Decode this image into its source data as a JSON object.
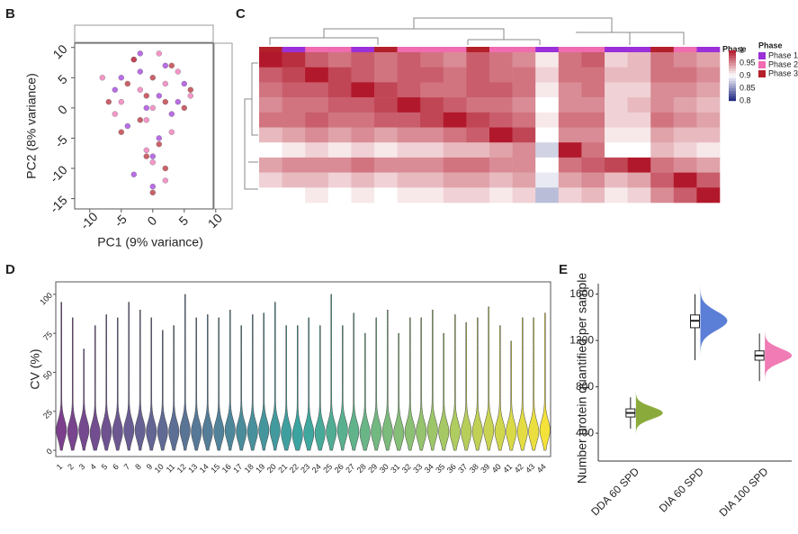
{
  "chart_data": [
    {
      "type": "scatter",
      "panel": "B",
      "x_label": "PC1 (9% variance)",
      "y_label": "PC2 (8% variance)",
      "xlim": [
        -12.4,
        9.6
      ],
      "ylim": [
        -16.7,
        10.7
      ],
      "xticks": [
        -10,
        -5,
        0,
        5,
        10
      ],
      "yticks": [
        -15,
        -10,
        -5,
        0,
        5,
        10
      ],
      "series": [
        {
          "name": "Phase 1",
          "color": "#9b30d9",
          "x": [
            -6,
            -2,
            1,
            3,
            -4,
            0,
            2,
            -1,
            5,
            -3,
            1,
            -2,
            0,
            4,
            -5
          ],
          "y": [
            3,
            6,
            2,
            -1,
            -3,
            -8,
            7,
            0,
            4,
            -11,
            -5,
            9,
            -13,
            1,
            5
          ]
        },
        {
          "name": "Phase 2",
          "color": "#f06bb0",
          "x": [
            -8,
            -3,
            2,
            6,
            -1,
            0,
            -5,
            3,
            1,
            -2,
            4,
            -6,
            2,
            -1,
            0
          ],
          "y": [
            5,
            8,
            4,
            2,
            -2,
            -9,
            1,
            -4,
            9,
            3,
            6,
            -1,
            -12,
            -7,
            0
          ]
        },
        {
          "name": "Phase 3",
          "color": "#b3202a",
          "x": [
            -7,
            -4,
            0,
            3,
            5,
            -2,
            1,
            -1,
            2,
            -3,
            0,
            6,
            -5,
            2,
            -1
          ],
          "y": [
            1,
            4,
            5,
            7,
            0,
            -2,
            -6,
            2,
            -10,
            8,
            -14,
            3,
            -4,
            1,
            -8
          ]
        }
      ]
    },
    {
      "type": "heatmap",
      "panel": "C",
      "annotation_label": "Phase",
      "legend_title": "Phase",
      "legend": [
        "Phase 1",
        "Phase 2",
        "Phase 3"
      ],
      "legend_colors": [
        "#9b30d9",
        "#f06bb0",
        "#b3202a"
      ],
      "column_phase": [
        2,
        0,
        1,
        1,
        0,
        2,
        1,
        1,
        1,
        2,
        1,
        1,
        0,
        1,
        1,
        0,
        0,
        2,
        1,
        0
      ],
      "clim": [
        0.8,
        1
      ],
      "cticks": [
        1,
        0.95,
        0.9,
        0.85,
        0.8
      ],
      "matrix": [
        [
          1,
          0.99,
          0.97,
          0.96,
          0.97,
          0.96,
          0.97,
          0.96,
          0.95,
          0.97,
          0.96,
          0.95,
          0.91,
          0.96,
          0.97,
          0.92,
          0.93,
          0.96,
          0.95,
          0.94
        ],
        [
          0.97,
          0.98,
          1,
          0.98,
          0.97,
          0.96,
          0.97,
          0.97,
          0.96,
          0.97,
          0.96,
          0.96,
          0.92,
          0.96,
          0.96,
          0.93,
          0.93,
          0.96,
          0.96,
          0.95
        ],
        [
          0.96,
          0.97,
          0.97,
          0.98,
          1,
          0.98,
          0.97,
          0.96,
          0.96,
          0.97,
          0.97,
          0.96,
          0.91,
          0.95,
          0.96,
          0.92,
          0.92,
          0.95,
          0.95,
          0.94
        ],
        [
          0.95,
          0.96,
          0.96,
          0.97,
          0.97,
          0.98,
          1,
          0.98,
          0.97,
          0.96,
          0.96,
          0.95,
          0.9,
          0.95,
          0.95,
          0.92,
          0.93,
          0.95,
          0.94,
          0.93
        ],
        [
          0.96,
          0.96,
          0.97,
          0.96,
          0.96,
          0.97,
          0.97,
          0.98,
          1,
          0.98,
          0.97,
          0.96,
          0.91,
          0.96,
          0.96,
          0.92,
          0.92,
          0.96,
          0.95,
          0.94
        ],
        [
          0.93,
          0.94,
          0.95,
          0.94,
          0.95,
          0.94,
          0.95,
          0.95,
          0.96,
          0.97,
          1,
          0.98,
          0.9,
          0.95,
          0.95,
          0.91,
          0.91,
          0.94,
          0.93,
          0.93
        ],
        [
          0.9,
          0.91,
          0.92,
          0.91,
          0.92,
          0.91,
          0.92,
          0.92,
          0.93,
          0.93,
          0.94,
          0.95,
          0.88,
          1,
          0.96,
          0.9,
          0.9,
          0.93,
          0.92,
          0.91
        ],
        [
          0.94,
          0.95,
          0.95,
          0.95,
          0.96,
          0.95,
          0.95,
          0.95,
          0.96,
          0.96,
          0.95,
          0.95,
          0.9,
          0.96,
          0.97,
          0.98,
          1,
          0.96,
          0.95,
          0.94
        ],
        [
          0.92,
          0.93,
          0.93,
          0.92,
          0.93,
          0.92,
          0.93,
          0.93,
          0.94,
          0.94,
          0.93,
          0.94,
          0.89,
          0.94,
          0.95,
          0.93,
          0.94,
          0.97,
          1,
          0.97
        ],
        [
          0.9,
          0.9,
          0.91,
          0.9,
          0.91,
          0.9,
          0.91,
          0.91,
          0.92,
          0.92,
          0.91,
          0.92,
          0.87,
          0.92,
          0.93,
          0.91,
          0.92,
          0.95,
          0.97,
          1
        ]
      ]
    },
    {
      "type": "violin",
      "panel": "D",
      "y_label": "CV (%)",
      "ylim": [
        -4,
        108
      ],
      "yticks": [
        0,
        25,
        50,
        75,
        100
      ],
      "colormap": [
        "#7b3f8c",
        "#3aa6a0",
        "#f4e23a"
      ],
      "categories": [
        "1",
        "2",
        "3",
        "4",
        "5",
        "6",
        "7",
        "8",
        "9",
        "10",
        "11",
        "12",
        "13",
        "14",
        "15",
        "16",
        "17",
        "18",
        "19",
        "20",
        "21",
        "22",
        "23",
        "24",
        "25",
        "26",
        "27",
        "28",
        "29",
        "30",
        "31",
        "32",
        "33",
        "34",
        "35",
        "36",
        "37",
        "38",
        "39",
        "40",
        "41",
        "42",
        "43",
        "44"
      ],
      "values": [
        13,
        12,
        13,
        11,
        12,
        12,
        13,
        13,
        12,
        12,
        12,
        13,
        12,
        12,
        12,
        13,
        12,
        12,
        13,
        13,
        11,
        10,
        11,
        11,
        12,
        13,
        12,
        11,
        12,
        12,
        11,
        12,
        12,
        13,
        12,
        12,
        12,
        12,
        13,
        12,
        12,
        12,
        12,
        13
      ],
      "max": [
        95,
        85,
        65,
        80,
        87,
        85,
        95,
        90,
        85,
        77,
        80,
        100,
        85,
        87,
        85,
        90,
        80,
        87,
        88,
        95,
        80,
        80,
        85,
        80,
        100,
        80,
        88,
        75,
        85,
        90,
        75,
        85,
        85,
        90,
        75,
        87,
        82,
        85,
        92,
        80,
        70,
        85,
        85,
        88
      ]
    },
    {
      "type": "raincloud",
      "panel": "E",
      "y_label": "Number protein quantified per sample",
      "ylim": [
        160,
        1690
      ],
      "yticks": [
        400,
        800,
        1200,
        1600
      ],
      "categories": [
        "DDA 60 SPD",
        "DIA 60 SPD",
        "DIA 100 SPD"
      ],
      "colors": [
        "#8aab3c",
        "#5b7fd6",
        "#f07bb5"
      ],
      "min": [
        440,
        1030,
        850
      ],
      "q1": [
        540,
        1310,
        1030
      ],
      "median": [
        575,
        1370,
        1070
      ],
      "q3": [
        610,
        1420,
        1110
      ],
      "max": [
        710,
        1600,
        1260
      ]
    }
  ]
}
